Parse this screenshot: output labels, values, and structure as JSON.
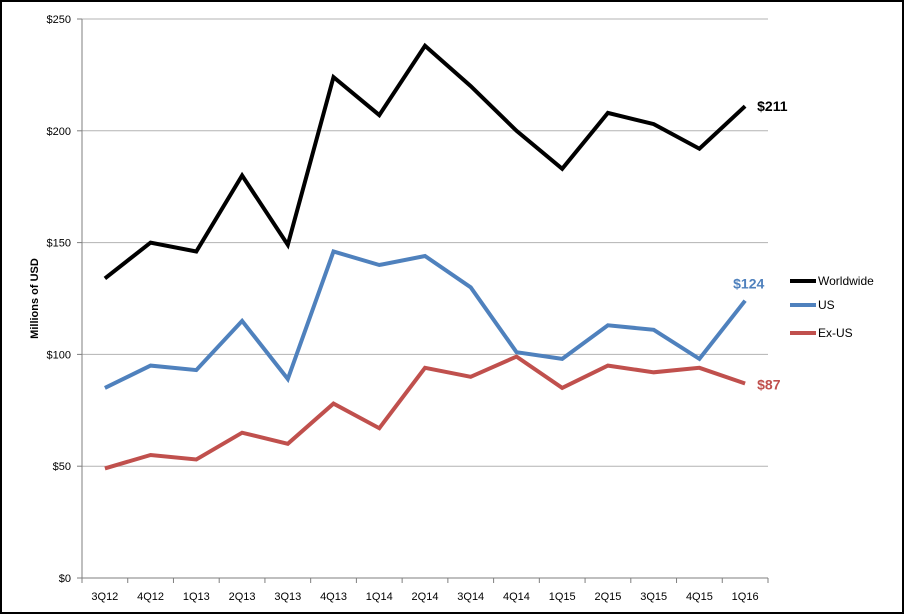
{
  "chart_data": {
    "type": "line",
    "title": "",
    "xlabel": "",
    "ylabel": "Millions of USD",
    "categories": [
      "3Q12",
      "4Q12",
      "1Q13",
      "2Q13",
      "3Q13",
      "4Q13",
      "1Q14",
      "2Q14",
      "3Q14",
      "4Q14",
      "1Q15",
      "2Q15",
      "3Q15",
      "4Q15",
      "1Q16"
    ],
    "ylim": [
      0,
      250
    ],
    "yticks": [
      0,
      50,
      100,
      150,
      200,
      250
    ],
    "ytick_labels": [
      "$0",
      "$50",
      "$100",
      "$150",
      "$200",
      "$250"
    ],
    "grid": true,
    "legend_position": "right",
    "series": [
      {
        "name": "Worldwide",
        "color": "#000000",
        "values": [
          134,
          150,
          146,
          180,
          149,
          224,
          207,
          238,
          220,
          200,
          183,
          208,
          203,
          192,
          211
        ],
        "end_label": "$211"
      },
      {
        "name": "US",
        "color": "#4f81bd",
        "values": [
          85,
          95,
          93,
          115,
          89,
          146,
          140,
          144,
          130,
          101,
          98,
          113,
          111,
          98,
          124
        ],
        "end_label": "$124"
      },
      {
        "name": "Ex-US",
        "color": "#c0504d",
        "values": [
          49,
          55,
          53,
          65,
          60,
          78,
          67,
          94,
          90,
          99,
          85,
          95,
          92,
          94,
          87
        ],
        "end_label": "$87"
      }
    ]
  }
}
